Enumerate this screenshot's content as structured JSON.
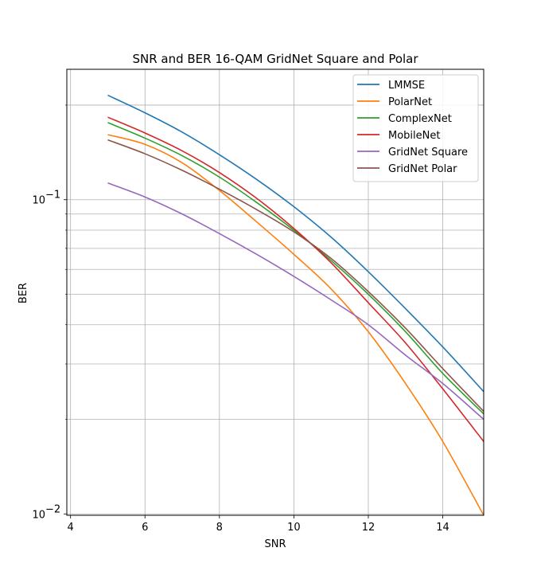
{
  "chart_data": {
    "type": "line",
    "title": "SNR and BER 16-QAM GridNet Square and Polar",
    "xlabel": "SNR",
    "ylabel": "BER",
    "xscale": "linear",
    "yscale": "log",
    "xlim": [
      3.9,
      15.1
    ],
    "ylim": [
      0.0099,
      0.26
    ],
    "x_ticks": [
      {
        "value": 4,
        "label": "4"
      },
      {
        "value": 6,
        "label": "6"
      },
      {
        "value": 8,
        "label": "8"
      },
      {
        "value": 10,
        "label": "10"
      },
      {
        "value": 12,
        "label": "12"
      },
      {
        "value": 14,
        "label": "14"
      }
    ],
    "y_major_ticks": [
      {
        "value": 0.01,
        "base": "10",
        "exp": "−2"
      },
      {
        "value": 0.1,
        "base": "10",
        "exp": "−1"
      }
    ],
    "y_minor_ticks": [
      0.02,
      0.03,
      0.04,
      0.05,
      0.06,
      0.07,
      0.08,
      0.09,
      0.2
    ],
    "grid": true,
    "legend_position": "top-right",
    "x": [
      5,
      6,
      7,
      8,
      9,
      10,
      11,
      12,
      13,
      14,
      15.1
    ],
    "series": [
      {
        "name": "LMMSE",
        "color": "#1f77b4",
        "values": [
          0.215,
          0.189,
          0.164,
          0.139,
          0.116,
          0.095,
          0.076,
          0.059,
          0.045,
          0.034,
          0.0245
        ]
      },
      {
        "name": "PolarNet",
        "color": "#ff7f0e",
        "values": [
          0.161,
          0.15,
          0.131,
          0.107,
          0.085,
          0.067,
          0.052,
          0.038,
          0.026,
          0.017,
          0.0099
        ]
      },
      {
        "name": "ComplexNet",
        "color": "#2ca02c",
        "values": [
          0.176,
          0.157,
          0.138,
          0.118,
          0.098,
          0.08,
          0.064,
          0.05,
          0.038,
          0.028,
          0.0208
        ]
      },
      {
        "name": "MobileNet",
        "color": "#d62728",
        "values": [
          0.183,
          0.163,
          0.143,
          0.122,
          0.101,
          0.081,
          0.063,
          0.047,
          0.035,
          0.025,
          0.017
        ]
      },
      {
        "name": "GridNet Square",
        "color": "#9467bd",
        "values": [
          0.113,
          0.102,
          0.09,
          0.078,
          0.067,
          0.057,
          0.048,
          0.04,
          0.032,
          0.026,
          0.02
        ]
      },
      {
        "name": "GridNet Polar",
        "color": "#8c564b",
        "values": [
          0.155,
          0.14,
          0.124,
          0.108,
          0.093,
          0.079,
          0.065,
          0.051,
          0.039,
          0.029,
          0.0212
        ]
      }
    ]
  }
}
